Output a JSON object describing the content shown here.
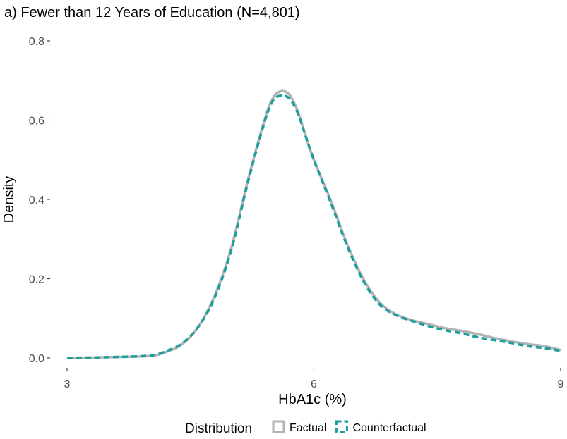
{
  "chart_data": {
    "type": "line",
    "title": "a) Fewer than 12 Years of Education (N=4,801)",
    "xlabel": "HbA1c (%)",
    "ylabel": "Density",
    "xlim": [
      3,
      9
    ],
    "ylim": [
      0,
      0.8
    ],
    "x_ticks": [
      3,
      6,
      9
    ],
    "x_tick_labels": [
      "3",
      "6",
      "9"
    ],
    "y_ticks": [
      0.0,
      0.2,
      0.4,
      0.6,
      0.8
    ],
    "y_tick_labels": [
      "0.0",
      "0.2",
      "0.4",
      "0.6",
      "0.8"
    ],
    "grid": false,
    "legend": {
      "title": "Distribution",
      "position": "bottom"
    },
    "series": [
      {
        "name": "Factual",
        "color": "#b3b3b3",
        "linestyle": "solid",
        "x": [
          3.0,
          3.5,
          4.0,
          4.2,
          4.4,
          4.6,
          4.8,
          5.0,
          5.2,
          5.4,
          5.5,
          5.6,
          5.7,
          5.8,
          5.9,
          6.0,
          6.2,
          6.4,
          6.6,
          6.8,
          7.0,
          7.2,
          7.4,
          7.6,
          7.8,
          8.0,
          8.2,
          8.4,
          8.6,
          8.8,
          9.0
        ],
        "y": [
          0.0,
          0.002,
          0.005,
          0.015,
          0.035,
          0.08,
          0.16,
          0.28,
          0.45,
          0.6,
          0.655,
          0.673,
          0.665,
          0.625,
          0.56,
          0.5,
          0.4,
          0.29,
          0.2,
          0.14,
          0.11,
          0.095,
          0.085,
          0.075,
          0.068,
          0.06,
          0.05,
          0.042,
          0.035,
          0.03,
          0.02
        ]
      },
      {
        "name": "Counterfactual",
        "color": "#1a9e9e",
        "linestyle": "dashed",
        "x": [
          3.0,
          3.5,
          4.0,
          4.2,
          4.4,
          4.6,
          4.8,
          5.0,
          5.2,
          5.4,
          5.5,
          5.6,
          5.7,
          5.8,
          5.9,
          6.0,
          6.2,
          6.4,
          6.6,
          6.8,
          7.0,
          7.2,
          7.4,
          7.6,
          7.8,
          8.0,
          8.2,
          8.4,
          8.6,
          8.8,
          9.0
        ],
        "y": [
          0.0,
          0.002,
          0.006,
          0.017,
          0.037,
          0.08,
          0.155,
          0.275,
          0.445,
          0.595,
          0.648,
          0.662,
          0.655,
          0.62,
          0.56,
          0.5,
          0.395,
          0.285,
          0.195,
          0.135,
          0.108,
          0.093,
          0.08,
          0.07,
          0.062,
          0.052,
          0.045,
          0.038,
          0.03,
          0.025,
          0.018
        ]
      }
    ]
  }
}
